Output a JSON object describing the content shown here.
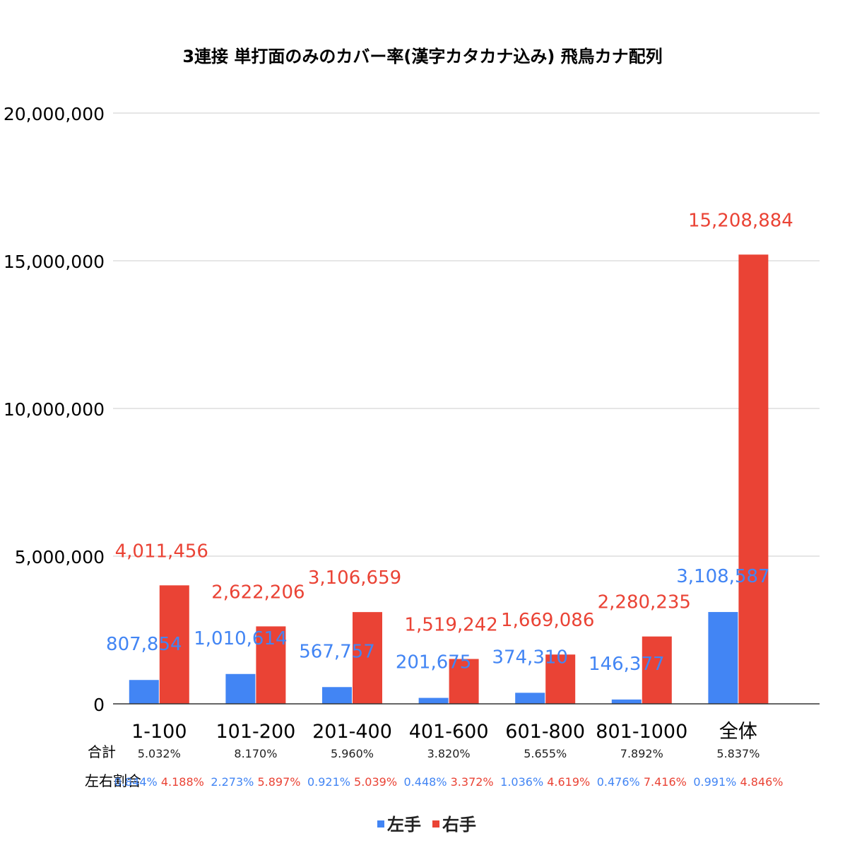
{
  "chart_data": {
    "type": "bar",
    "title": "3連接 単打面のみのカバー率(漢字カタカナ込み) 飛鳥カナ配列",
    "categories": [
      "1-100",
      "101-200",
      "201-400",
      "401-600",
      "601-800",
      "801-1000",
      "全体"
    ],
    "series": [
      {
        "name": "左手",
        "color": "#4285f4",
        "values": [
          807854,
          1010614,
          567757,
          201675,
          374310,
          146377,
          3108587
        ],
        "labels": [
          "807,854",
          "1,010,614",
          "567,757",
          "201,675",
          "374,310",
          "146,377",
          "3,108,587"
        ]
      },
      {
        "name": "右手",
        "color": "#ea4335",
        "values": [
          4011456,
          2622206,
          3106659,
          1519242,
          1669086,
          2280235,
          15208884
        ],
        "labels": [
          "4,011,456",
          "2,622,206",
          "3,106,659",
          "1,519,242",
          "1,669,086",
          "2,280,235",
          "15,208,884"
        ]
      }
    ],
    "ylim": [
      0,
      20000000
    ],
    "yticks": [
      "0",
      "5,000,000",
      "10,000,000",
      "15,000,000",
      "20,000,000"
    ],
    "ytick_values": [
      0,
      5000000,
      10000000,
      15000000,
      20000000
    ],
    "grid": true,
    "legend_position": "bottom",
    "annotations": {
      "total_row_label": "合計",
      "totals": [
        "5.032%",
        "8.170%",
        "5.960%",
        "3.820%",
        "5.655%",
        "7.892%",
        "5.837%"
      ],
      "ratio_row_label": "左右割合",
      "left_ratios": [
        "0.844%",
        "2.273%",
        "0.921%",
        "0.448%",
        "1.036%",
        "0.476%",
        "0.991%"
      ],
      "right_ratios": [
        "4.188%",
        "5.897%",
        "5.039%",
        "3.372%",
        "4.619%",
        "7.416%",
        "4.846%"
      ]
    }
  },
  "colors": {
    "grid": "#cccccc",
    "axis": "#333333",
    "text": "#000000"
  }
}
